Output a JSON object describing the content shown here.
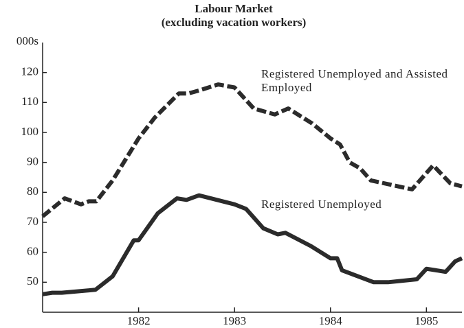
{
  "chart_data": {
    "type": "line",
    "title": "Labour Market",
    "subtitle": "(excluding vacation workers)",
    "y_label": "000s",
    "xlim": [
      1981.0,
      1985.37
    ],
    "xticks": [
      1982,
      1983,
      1984,
      1985
    ],
    "ylim": [
      40,
      130
    ],
    "yticks": [
      50,
      60,
      70,
      80,
      90,
      100,
      110,
      120
    ],
    "series": [
      {
        "name": "Registered Unemployed and Assisted Employed",
        "color": "#2b2b2b",
        "dashed": true,
        "x": [
          1981.0,
          1981.23,
          1981.4,
          1981.48,
          1981.56,
          1981.73,
          1982.0,
          1982.17,
          1982.42,
          1982.52,
          1982.63,
          1982.83,
          1983.0,
          1983.2,
          1983.42,
          1983.56,
          1983.81,
          1984.0,
          1984.1,
          1984.2,
          1984.31,
          1984.42,
          1984.85,
          1985.07,
          1985.25,
          1985.37
        ],
        "values": [
          72,
          78,
          76,
          77,
          77,
          84,
          98,
          105,
          113,
          113,
          114,
          116,
          115,
          108,
          106,
          108,
          103,
          98,
          96,
          90,
          88,
          84,
          81,
          89,
          83,
          82
        ]
      },
      {
        "name": "Registered Unemployed",
        "color": "#2b2b2b",
        "dashed": false,
        "x": [
          1981.0,
          1981.1,
          1981.2,
          1981.55,
          1981.73,
          1981.95,
          1982.0,
          1982.2,
          1982.4,
          1982.5,
          1982.63,
          1983.0,
          1983.12,
          1983.3,
          1983.45,
          1983.53,
          1983.8,
          1984.0,
          1984.07,
          1984.12,
          1984.45,
          1984.6,
          1984.9,
          1985.0,
          1985.1,
          1985.2,
          1985.3,
          1985.37
        ],
        "values": [
          46,
          46.5,
          46.5,
          47.5,
          52,
          64,
          64,
          73,
          78,
          77.5,
          79,
          76,
          74.5,
          68,
          66,
          66.5,
          62,
          58,
          58,
          54,
          50,
          50,
          51,
          54.5,
          54,
          53.5,
          57,
          58
        ]
      }
    ]
  }
}
